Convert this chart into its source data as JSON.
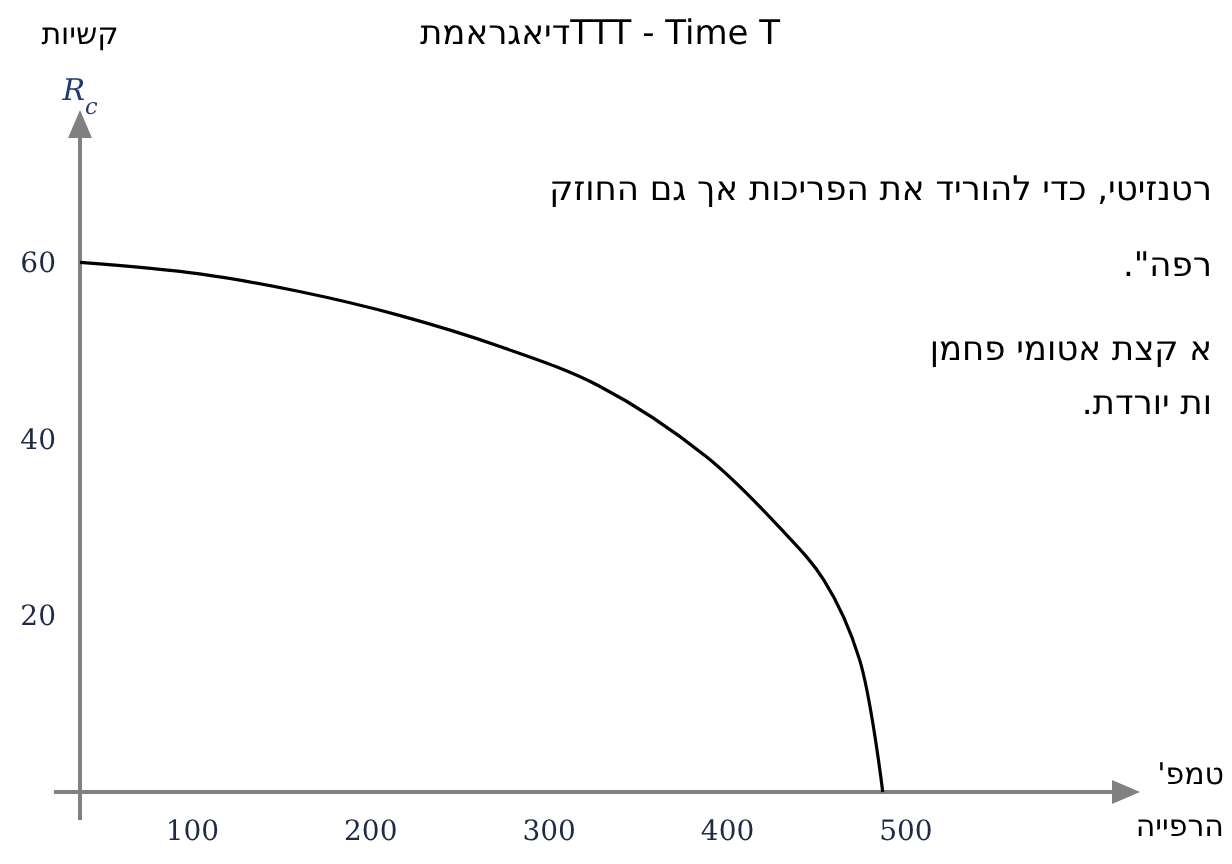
{
  "chart_data": {
    "type": "line",
    "title": "דיאגראמתTTT - Time T",
    "xlabel": "טמפ' הרפייה",
    "ylabel": "קשיות",
    "annotations": [
      "R$_{c}$",
      "רטנזיטי, כדי להוריד את הפריכות אך גם החוזק",
      "רפה\".",
      "א קצת אטומי פחמן",
      "ות יורדת."
    ],
    "x": [
      37,
      104,
      160,
      216,
      272,
      328,
      388,
      429,
      454,
      474,
      487
    ],
    "series": [
      {
        "color": "#000000",
        "values": [
          60,
          58.7,
          56.7,
          54,
          50.5,
          46,
          38,
          30,
          24,
          15,
          0
        ]
      }
    ],
    "xlim": [
      37,
      620
    ],
    "ylim": [
      0,
      75
    ],
    "xticks": [
      100,
      200,
      300,
      400,
      500
    ],
    "yticks": [
      20,
      40,
      60
    ],
    "grid": false,
    "marker": "none",
    "line_style": "solid"
  }
}
